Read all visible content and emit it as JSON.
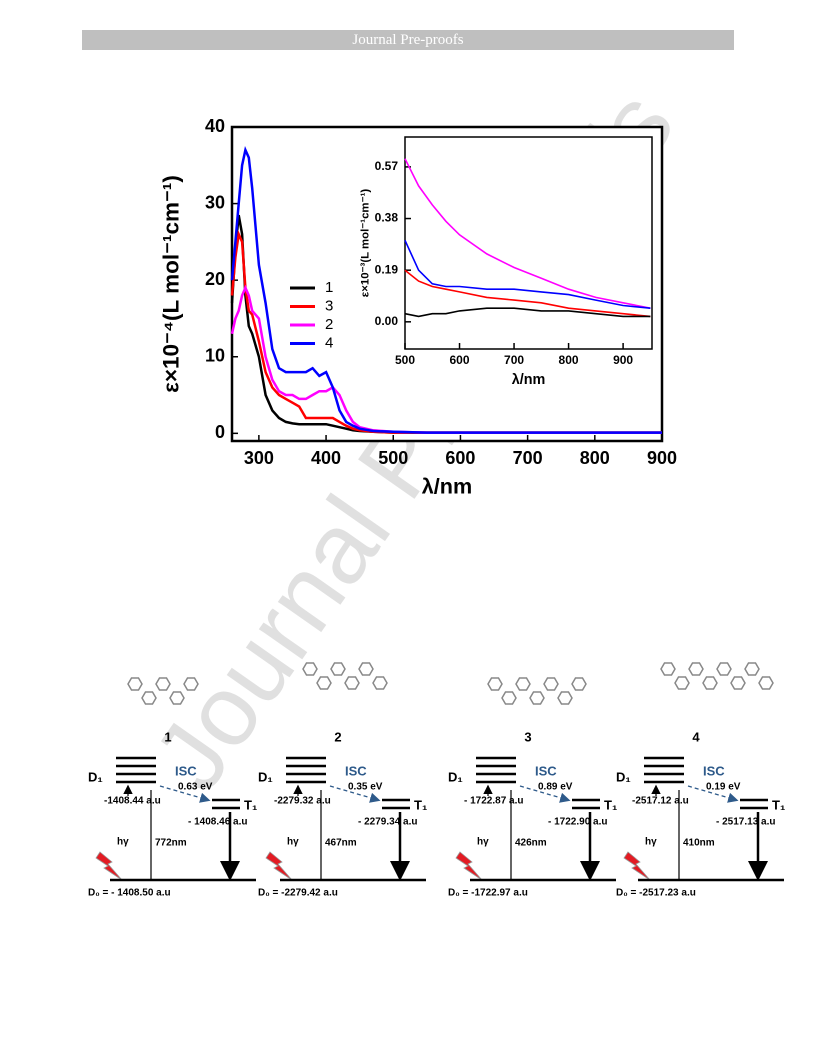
{
  "header": "Journal Pre-proofs",
  "watermark": "Journal Pre-proofs",
  "chart_data": [
    {
      "type": "line",
      "xlabel": "λ/nm",
      "ylabel": "ε×10⁻⁴(L mol⁻¹cm⁻¹)",
      "x": [
        260,
        265,
        270,
        275,
        280,
        285,
        290,
        300,
        310,
        320,
        330,
        340,
        350,
        360,
        370,
        380,
        390,
        400,
        410,
        420,
        430,
        440,
        450,
        470,
        500,
        550,
        600,
        700,
        800,
        900
      ],
      "series": [
        {
          "name": "1",
          "color": "#000000",
          "values": [
            17,
            24,
            28.5,
            26,
            18,
            14,
            13,
            10,
            5,
            3,
            2,
            1.5,
            1.3,
            1.2,
            1.2,
            1.2,
            1.2,
            1.2,
            1,
            0.8,
            0.6,
            0.4,
            0.3,
            0.2,
            0.1,
            0.1,
            0.1,
            0.1,
            0.1,
            0.1
          ]
        },
        {
          "name": "3",
          "color": "#ff0000",
          "values": [
            18,
            23,
            26,
            25,
            19,
            16,
            15.5,
            12,
            8,
            6,
            5,
            4.5,
            4,
            3.5,
            2,
            2,
            2,
            2,
            2,
            1.5,
            1,
            0.6,
            0.4,
            0.2,
            0.1,
            0.1,
            0.1,
            0.1,
            0.1,
            0.1
          ]
        },
        {
          "name": "2",
          "color": "#ff00ff",
          "values": [
            13,
            15,
            16,
            18,
            19,
            18,
            16,
            15,
            10,
            7,
            5.5,
            5,
            5,
            4.5,
            4.5,
            5,
            5.5,
            5.5,
            6,
            5,
            3,
            1.5,
            0.8,
            0.4,
            0.2,
            0.1,
            0.1,
            0.1,
            0.1,
            0.1
          ]
        },
        {
          "name": "4",
          "color": "#0000ff",
          "values": [
            20,
            25,
            30,
            35,
            37,
            36,
            32,
            22,
            17,
            11,
            8.5,
            8,
            8,
            8,
            8,
            8.5,
            7.5,
            8,
            6,
            3,
            1.5,
            1,
            0.6,
            0.3,
            0.2,
            0.1,
            0.1,
            0.1,
            0.1,
            0.1
          ]
        }
      ],
      "xlim": [
        260,
        900
      ],
      "xticks": [
        300,
        400,
        500,
        600,
        700,
        800,
        900
      ],
      "ylim": [
        -1,
        40
      ],
      "yticks": [
        0,
        10,
        20,
        30,
        40
      ]
    },
    {
      "type": "line",
      "xlabel": "λ/nm",
      "ylabel": "ε×10⁻³(L mol⁻¹cm⁻¹)",
      "x": [
        500,
        525,
        550,
        575,
        600,
        650,
        700,
        750,
        800,
        850,
        900,
        950
      ],
      "series": [
        {
          "color": "#ff00ff",
          "values": [
            0.6,
            0.5,
            0.43,
            0.37,
            0.32,
            0.25,
            0.2,
            0.16,
            0.12,
            0.09,
            0.07,
            0.05
          ]
        },
        {
          "color": "#0000ff",
          "values": [
            0.3,
            0.19,
            0.14,
            0.13,
            0.13,
            0.12,
            0.12,
            0.11,
            0.1,
            0.08,
            0.06,
            0.05
          ]
        },
        {
          "color": "#ff0000",
          "values": [
            0.19,
            0.15,
            0.13,
            0.12,
            0.11,
            0.09,
            0.08,
            0.07,
            0.05,
            0.04,
            0.03,
            0.02
          ]
        },
        {
          "color": "#000000",
          "values": [
            0.03,
            0.02,
            0.03,
            0.03,
            0.04,
            0.05,
            0.05,
            0.04,
            0.04,
            0.03,
            0.02,
            0.02
          ]
        }
      ],
      "xlim": [
        500,
        953
      ],
      "xticks": [
        500,
        600,
        700,
        800,
        900
      ],
      "ylim": [
        -0.1,
        0.68
      ],
      "yticks": [
        {
          "value": 0,
          "label": "0.00"
        },
        0.19,
        0.38,
        0.57
      ]
    }
  ],
  "diagrams": [
    {
      "label": "1",
      "d1": "D₁",
      "isc": "ISC",
      "gap": "0.63 eV",
      "d1_energy": "-1408.44 a.u",
      "t1": "T₁",
      "t1_energy": "- 1408.46 a.u",
      "hv": "hγ",
      "wavelength": "772nm",
      "d0": "D₀ = - 1408.50 a.u"
    },
    {
      "label": "2",
      "d1": "D₁",
      "isc": "ISC",
      "gap": "0.35 eV",
      "d1_energy": "-2279.32 a.u",
      "t1": "T₁",
      "t1_energy": "- 2279.34 a.u",
      "hv": "hγ",
      "wavelength": "467nm",
      "d0": "D₀ = -2279.42 a.u"
    },
    {
      "label": "3",
      "d1": "D₁",
      "isc": "ISC",
      "gap": "0.89 eV",
      "d1_energy": "- 1722.87 a.u",
      "t1": "T₁",
      "t1_energy": "- 1722.90 a.u",
      "hv": "hγ",
      "wavelength": "426nm",
      "d0": "D₀ = -1722.97 a.u"
    },
    {
      "label": "4",
      "d1": "D₁",
      "isc": "ISC",
      "gap": "0.19 eV",
      "d1_energy": "-2517.12 a.u",
      "t1": "T₁",
      "t1_energy": "- 2517.13 a.u",
      "hv": "hγ",
      "wavelength": "410nm",
      "d0": "D₀ = -2517.23 a.u"
    }
  ]
}
